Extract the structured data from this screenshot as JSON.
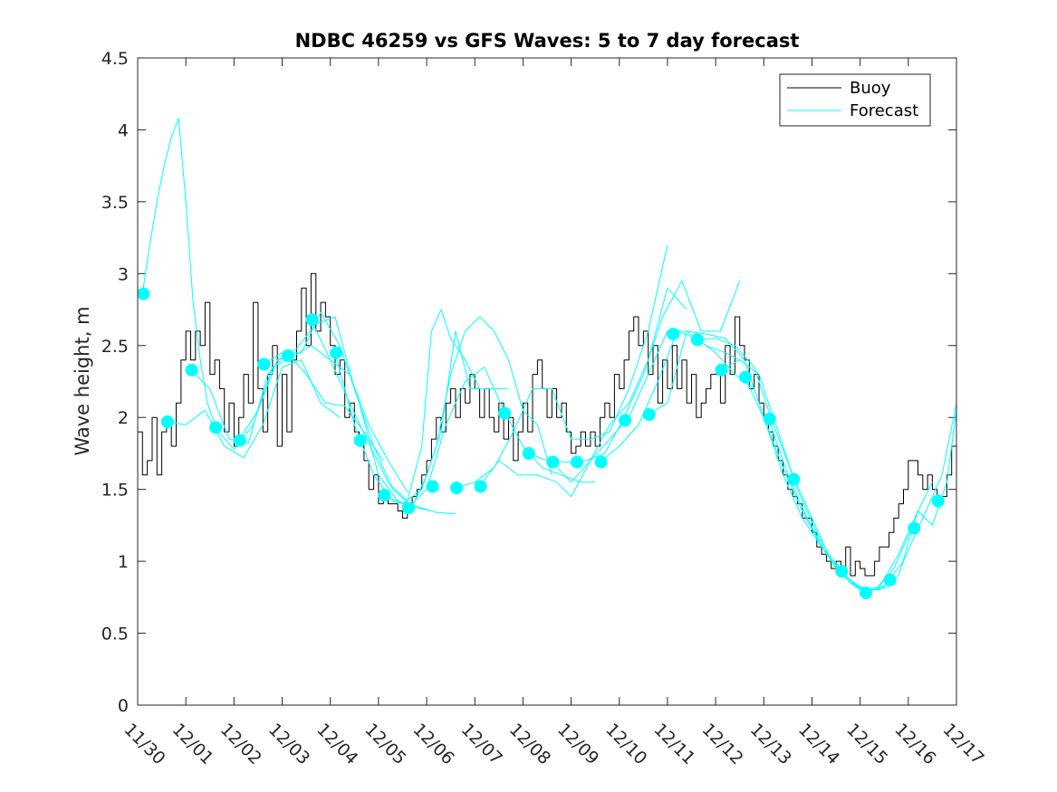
{
  "chart_data": {
    "type": "line",
    "title": "NDBC 46259 vs GFS Waves: 5 to 7 day forecast",
    "xlabel": "",
    "ylabel": "Wave height, m",
    "xlim": [
      0,
      17
    ],
    "ylim": [
      0,
      4.5
    ],
    "yticks": [
      0,
      0.5,
      1,
      1.5,
      2,
      2.5,
      3,
      3.5,
      4,
      4.5
    ],
    "ytick_labels": [
      "0",
      "0.5",
      "1",
      "1.5",
      "2",
      "2.5",
      "3",
      "3.5",
      "4",
      "4.5"
    ],
    "xticks": [
      0,
      1,
      2,
      3,
      4,
      5,
      6,
      7,
      8,
      9,
      10,
      11,
      12,
      13,
      14,
      15,
      16,
      17
    ],
    "xtick_labels": [
      "11/30",
      "12/01",
      "12/02",
      "12/03",
      "12/04",
      "12/05",
      "12/06",
      "12/07",
      "12/08",
      "12/09",
      "12/10",
      "12/11",
      "12/12",
      "12/13",
      "12/14",
      "12/15",
      "12/16",
      "12/17"
    ],
    "legend": {
      "position": "top-right",
      "entries": [
        "Buoy",
        "Forecast"
      ]
    },
    "colors": {
      "buoy": "#000000",
      "forecast": "#00ffff",
      "axes": "#262626"
    },
    "series": [
      {
        "name": "Buoy",
        "x": [
          0,
          0.1,
          0.2,
          0.3,
          0.4,
          0.5,
          0.6,
          0.7,
          0.8,
          0.9,
          1.0,
          1.1,
          1.2,
          1.3,
          1.4,
          1.5,
          1.6,
          1.7,
          1.8,
          1.9,
          2.0,
          2.1,
          2.2,
          2.3,
          2.4,
          2.5,
          2.6,
          2.7,
          2.8,
          2.9,
          3.0,
          3.1,
          3.2,
          3.3,
          3.4,
          3.5,
          3.6,
          3.7,
          3.8,
          3.9,
          4.0,
          4.1,
          4.2,
          4.3,
          4.4,
          4.5,
          4.6,
          4.7,
          4.8,
          4.9,
          5.0,
          5.1,
          5.2,
          5.3,
          5.4,
          5.5,
          5.6,
          5.7,
          5.8,
          5.9,
          6.0,
          6.1,
          6.2,
          6.3,
          6.4,
          6.5,
          6.6,
          6.7,
          6.8,
          6.9,
          7.0,
          7.1,
          7.2,
          7.3,
          7.4,
          7.5,
          7.6,
          7.7,
          7.8,
          7.9,
          8.0,
          8.1,
          8.2,
          8.3,
          8.4,
          8.5,
          8.6,
          8.7,
          8.8,
          8.9,
          9.0,
          9.1,
          9.2,
          9.3,
          9.4,
          9.5,
          9.6,
          9.7,
          9.8,
          9.9,
          10.0,
          10.1,
          10.2,
          10.3,
          10.4,
          10.5,
          10.6,
          10.7,
          10.8,
          10.9,
          11.0,
          11.1,
          11.2,
          11.3,
          11.4,
          11.5,
          11.6,
          11.7,
          11.8,
          11.9,
          12.0,
          12.1,
          12.2,
          12.3,
          12.4,
          12.5,
          12.6,
          12.7,
          12.8,
          12.9,
          13.0,
          13.1,
          13.2,
          13.3,
          13.4,
          13.5,
          13.6,
          13.7,
          13.8,
          13.9,
          14.0,
          14.1,
          14.2,
          14.3,
          14.4,
          14.5,
          14.6,
          14.7,
          14.8,
          14.9,
          15.0,
          15.1,
          15.2,
          15.3,
          15.4,
          15.5,
          15.6,
          15.7,
          15.8,
          15.9,
          16.0,
          16.1,
          16.2,
          16.3,
          16.4,
          16.5,
          16.6,
          16.7,
          16.8,
          16.9,
          17.0
        ],
        "values": [
          1.9,
          1.6,
          1.7,
          2.0,
          1.6,
          1.9,
          2.0,
          1.8,
          2.1,
          2.4,
          2.6,
          2.4,
          2.6,
          2.5,
          2.8,
          2.3,
          2.4,
          2.2,
          1.9,
          2.1,
          1.8,
          2.0,
          2.3,
          2.1,
          2.8,
          2.2,
          1.9,
          2.3,
          2.5,
          1.8,
          2.3,
          1.9,
          2.4,
          2.6,
          2.9,
          2.5,
          3.0,
          2.6,
          2.8,
          2.7,
          2.5,
          2.3,
          2.4,
          2.0,
          2.1,
          1.9,
          1.8,
          1.7,
          1.5,
          1.6,
          1.4,
          1.45,
          1.4,
          1.4,
          1.35,
          1.3,
          1.35,
          1.45,
          1.5,
          1.6,
          1.7,
          1.85,
          2.0,
          1.9,
          2.1,
          2.2,
          2.0,
          2.2,
          2.1,
          2.3,
          2.2,
          2.0,
          2.2,
          2.0,
          1.9,
          2.1,
          1.85,
          2.0,
          1.7,
          1.9,
          2.1,
          1.9,
          2.3,
          2.4,
          2.2,
          2.0,
          2.2,
          2.0,
          2.1,
          1.9,
          1.75,
          1.8,
          1.9,
          1.8,
          1.9,
          1.8,
          2.0,
          2.1,
          2.0,
          2.3,
          2.2,
          2.4,
          2.6,
          2.7,
          2.5,
          2.6,
          2.3,
          2.5,
          2.1,
          2.4,
          2.2,
          2.5,
          2.2,
          2.4,
          2.1,
          2.3,
          2.0,
          2.1,
          2.2,
          2.3,
          2.3,
          2.1,
          2.5,
          2.3,
          2.7,
          2.5,
          2.4,
          2.2,
          2.3,
          2.1,
          2.0,
          1.9,
          1.8,
          1.7,
          1.6,
          1.5,
          1.45,
          1.4,
          1.3,
          1.3,
          1.2,
          1.1,
          1.05,
          1.0,
          0.95,
          1.0,
          0.9,
          1.1,
          0.9,
          1.0,
          0.95,
          0.9,
          0.9,
          1.0,
          1.1,
          1.1,
          1.2,
          1.3,
          1.4,
          1.5,
          1.7,
          1.7,
          1.6,
          1.5,
          1.6,
          1.5,
          1.4,
          1.45,
          1.6,
          1.8,
          2.0
        ]
      },
      {
        "name": "Forecast run 1",
        "x": [
          0.1,
          0.25,
          0.4,
          0.55,
          0.7,
          0.85,
          1.0,
          1.15,
          1.3,
          1.45,
          1.6
        ],
        "values": [
          2.86,
          3.2,
          3.5,
          3.75,
          3.95,
          4.08,
          3.5,
          2.8,
          2.4,
          2.1,
          1.95
        ]
      },
      {
        "name": "Forecast run 2",
        "x": [
          0.6,
          1.0,
          1.4,
          1.8,
          2.2,
          2.6,
          3.0,
          3.4,
          3.8,
          4.2
        ],
        "values": [
          1.97,
          1.95,
          2.05,
          1.8,
          1.72,
          1.95,
          2.35,
          2.4,
          2.1,
          2.0
        ]
      },
      {
        "name": "Forecast run 3",
        "x": [
          1.1,
          1.5,
          1.9,
          2.3,
          2.7,
          3.1,
          3.5,
          3.9,
          4.3,
          4.7,
          5.1
        ],
        "values": [
          2.33,
          2.2,
          1.85,
          1.82,
          2.3,
          2.45,
          2.3,
          2.1,
          2.08,
          1.9,
          1.7
        ]
      },
      {
        "name": "Forecast run 4",
        "x": [
          1.6,
          2.0,
          2.4,
          2.8,
          3.2,
          3.6,
          4.0,
          4.4,
          4.8,
          5.2,
          5.6
        ],
        "values": [
          1.93,
          1.78,
          1.95,
          2.35,
          2.42,
          2.5,
          2.4,
          2.3,
          1.95,
          1.7,
          1.48
        ]
      },
      {
        "name": "Forecast run 5",
        "x": [
          2.1,
          2.5,
          2.9,
          3.3,
          3.7,
          4.1,
          4.5,
          4.9,
          5.3,
          5.7,
          6.1
        ],
        "values": [
          1.84,
          2.05,
          2.4,
          2.48,
          2.65,
          2.7,
          2.2,
          1.8,
          1.5,
          1.38,
          1.35
        ]
      },
      {
        "name": "Forecast run 6",
        "x": [
          2.6,
          3.0,
          3.4,
          3.8,
          4.2,
          4.6,
          5.0,
          5.4,
          5.8,
          6.2,
          6.6
        ],
        "values": [
          2.37,
          2.45,
          2.45,
          2.73,
          2.5,
          2.1,
          1.6,
          1.42,
          1.38,
          1.34,
          1.33
        ]
      },
      {
        "name": "Forecast run 7",
        "x": [
          3.6,
          4.0,
          4.4,
          4.8,
          5.2,
          5.6,
          5.9,
          6.1,
          6.3,
          6.5,
          6.8,
          7.1
        ],
        "values": [
          2.68,
          2.4,
          2.1,
          1.82,
          1.55,
          1.42,
          1.8,
          2.6,
          2.75,
          2.55,
          2.4,
          2.2
        ]
      },
      {
        "name": "Forecast run 8",
        "x": [
          4.1,
          4.5,
          4.9,
          5.3,
          5.7,
          6.0,
          6.3,
          6.6,
          6.9,
          7.2,
          7.5,
          7.7
        ],
        "values": [
          2.45,
          1.95,
          1.6,
          1.42,
          1.38,
          1.6,
          1.9,
          2.6,
          2.2,
          2.2,
          2.2,
          2.2
        ]
      },
      {
        "name": "Forecast run 9",
        "x": [
          5.1,
          5.5,
          5.9,
          6.2,
          6.5,
          6.8,
          7.1,
          7.4,
          7.7,
          8.0,
          8.3,
          8.6
        ],
        "values": [
          1.46,
          1.4,
          1.5,
          1.8,
          2.3,
          2.6,
          2.7,
          2.6,
          2.4,
          2.05,
          1.95,
          1.6
        ]
      },
      {
        "name": "Forecast run 10",
        "x": [
          5.6,
          6.0,
          6.4,
          6.8,
          7.2,
          7.6,
          8.0,
          8.4,
          8.8,
          9.2,
          9.5
        ],
        "values": [
          1.37,
          1.5,
          1.95,
          2.25,
          2.35,
          2.05,
          1.8,
          1.65,
          1.6,
          1.55,
          1.55
        ]
      },
      {
        "name": "Forecast run 11",
        "x": [
          6.6,
          7.0,
          7.4,
          7.8,
          8.2,
          8.6,
          9.0,
          9.4,
          9.8,
          10.2,
          10.6,
          11.0
        ],
        "values": [
          1.51,
          1.55,
          1.65,
          1.9,
          2.2,
          2.2,
          1.85,
          1.85,
          1.9,
          2.2,
          2.6,
          3.2
        ]
      },
      {
        "name": "Forecast run 12",
        "x": [
          7.1,
          7.5,
          7.9,
          8.3,
          8.7,
          9.0,
          9.4,
          9.8,
          10.2,
          10.6,
          11.0,
          11.4
        ],
        "values": [
          1.52,
          1.7,
          1.6,
          1.6,
          1.55,
          1.45,
          1.7,
          1.95,
          2.1,
          2.4,
          2.9,
          2.75
        ]
      },
      {
        "name": "Forecast run 13",
        "x": [
          8.1,
          8.5,
          8.9,
          9.3,
          9.7,
          10.1,
          10.5,
          10.9,
          11.3,
          11.7,
          12.1,
          12.5
        ],
        "values": [
          1.75,
          1.7,
          1.69,
          1.7,
          1.75,
          2.0,
          2.3,
          2.7,
          2.95,
          2.6,
          2.6,
          2.95
        ]
      },
      {
        "name": "Forecast run 14",
        "x": [
          8.6,
          9.0,
          9.4,
          9.8,
          10.2,
          10.6,
          11.0,
          11.4,
          11.8,
          12.2,
          12.5
        ],
        "values": [
          1.69,
          1.55,
          1.7,
          1.85,
          2.0,
          2.3,
          2.6,
          2.6,
          2.5,
          2.45,
          2.4
        ]
      },
      {
        "name": "Forecast run 15",
        "x": [
          9.6,
          10.0,
          10.4,
          10.8,
          11.2,
          11.6,
          12.0,
          12.4,
          12.8
        ],
        "values": [
          1.69,
          1.8,
          1.95,
          2.25,
          2.6,
          2.55,
          2.45,
          2.3,
          2.2
        ]
      },
      {
        "name": "Forecast run 16",
        "x": [
          10.6,
          11.0,
          11.4,
          11.8,
          12.2,
          12.6,
          13.0,
          13.4,
          13.8,
          14.2,
          14.6
        ],
        "values": [
          2.02,
          2.1,
          2.6,
          2.58,
          2.55,
          2.4,
          2.0,
          1.6,
          1.3,
          1.1,
          0.95
        ]
      },
      {
        "name": "Forecast run 17",
        "x": [
          11.6,
          12.0,
          12.4,
          12.8,
          13.2,
          13.6,
          14.0,
          14.4,
          14.8,
          15.2,
          15.6
        ],
        "values": [
          2.54,
          2.55,
          2.5,
          2.35,
          1.95,
          1.6,
          1.3,
          1.0,
          0.85,
          0.8,
          0.82
        ]
      },
      {
        "name": "Forecast run 18",
        "x": [
          12.1,
          12.5,
          12.9,
          13.3,
          13.7,
          14.1,
          14.5,
          14.9,
          15.3,
          15.7,
          16.1
        ],
        "values": [
          2.33,
          2.4,
          2.3,
          1.9,
          1.5,
          1.2,
          0.95,
          0.82,
          0.8,
          0.95,
          1.25
        ]
      },
      {
        "name": "Forecast run 19",
        "x": [
          12.6,
          13.0,
          13.4,
          13.8,
          14.2,
          14.6,
          15.0,
          15.4,
          15.8,
          16.2,
          16.5
        ],
        "values": [
          2.28,
          2.0,
          1.65,
          1.35,
          1.1,
          0.92,
          0.82,
          0.8,
          0.9,
          1.35,
          1.55
        ]
      },
      {
        "name": "Forecast run 20",
        "x": [
          13.1,
          13.5,
          13.9,
          14.3,
          14.7,
          15.1,
          15.5,
          15.9,
          16.3,
          16.7,
          17.0
        ],
        "values": [
          1.99,
          1.6,
          1.3,
          1.05,
          0.9,
          0.78,
          0.83,
          1.0,
          1.3,
          1.6,
          2.1
        ]
      },
      {
        "name": "Forecast run 21",
        "x": [
          14.6,
          15.0,
          15.4,
          15.8,
          16.2,
          16.5,
          16.8,
          17.0
        ],
        "values": [
          0.93,
          0.8,
          0.82,
          1.05,
          1.35,
          1.25,
          1.55,
          2.05
        ]
      }
    ],
    "markers": {
      "name": "Forecast nowcast points",
      "x": [
        0.12,
        0.62,
        1.12,
        1.62,
        2.12,
        2.62,
        3.12,
        3.62,
        4.12,
        4.62,
        5.12,
        5.62,
        6.12,
        6.62,
        7.12,
        7.62,
        8.12,
        8.62,
        9.12,
        9.62,
        10.12,
        10.62,
        11.12,
        11.62,
        12.12,
        12.62,
        13.12,
        13.62,
        14.62,
        15.12,
        15.62,
        16.12,
        16.62
      ],
      "values": [
        2.86,
        1.97,
        2.33,
        1.93,
        1.84,
        2.37,
        2.43,
        2.68,
        2.45,
        1.84,
        1.46,
        1.37,
        1.52,
        1.51,
        1.52,
        2.03,
        1.75,
        1.69,
        1.69,
        1.69,
        1.98,
        2.02,
        2.58,
        2.54,
        2.33,
        2.28,
        1.99,
        1.57,
        0.93,
        0.78,
        0.87,
        1.23,
        1.42
      ]
    }
  }
}
